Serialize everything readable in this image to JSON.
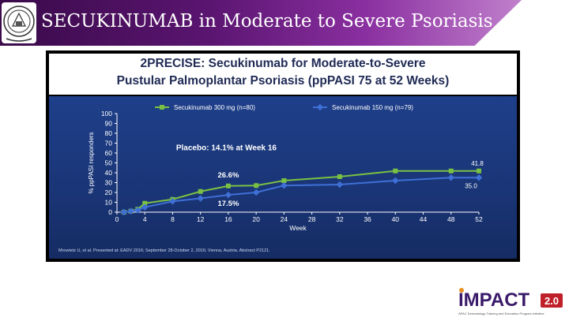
{
  "header": {
    "title": "SECUKINUMAB in Moderate to Severe Psoriasis"
  },
  "chart_title": {
    "line1": "2PRECISE: Secukinumab for Moderate-to-Severe",
    "line2": "Pustular Palmoplantar Psoriasis (ppPASI 75 at 52 Weeks)"
  },
  "footer_logo": {
    "text": "IMPACT",
    "version": "2.0",
    "tagline": "APAC Dermatology Training and Education Program Initiative"
  },
  "colors": {
    "series_300": "#7ac143",
    "series_150": "#3f6fd6",
    "chart_bg": "#1a3576",
    "header_accent": "#5a1570",
    "badge_red": "#c0202a"
  },
  "chart_data": {
    "type": "line",
    "title": "2PRECISE: Secukinumab for Moderate-to-Severe Pustular Palmoplantar Psoriasis (ppPASI 75 at 52 Weeks)",
    "xlabel": "Week",
    "ylabel": "% ppPASI responders",
    "xlim": [
      0,
      52
    ],
    "ylim": [
      0,
      100
    ],
    "xticks": [
      0,
      4,
      8,
      12,
      16,
      20,
      24,
      28,
      32,
      36,
      40,
      44,
      48,
      52
    ],
    "yticks": [
      0,
      10,
      20,
      30,
      40,
      50,
      60,
      70,
      80,
      90,
      100
    ],
    "grid": false,
    "legend_position": "top",
    "series": [
      {
        "name": "Secukinumab 300 mg (n=80)",
        "color": "#7ac143",
        "x": [
          1,
          2,
          3,
          4,
          8,
          12,
          16,
          20,
          24,
          32,
          40,
          48,
          52
        ],
        "y": [
          0,
          1,
          3,
          9,
          13,
          21,
          26.6,
          27,
          32,
          36,
          41.8,
          41.8,
          41.8
        ]
      },
      {
        "name": "Secukinumab 150 mg (n=79)",
        "color": "#3f6fd6",
        "x": [
          1,
          2,
          3,
          4,
          8,
          12,
          16,
          20,
          24,
          32,
          40,
          48,
          52
        ],
        "y": [
          0,
          1,
          2,
          5,
          11,
          14,
          17.5,
          20,
          27,
          28,
          32,
          35,
          35.0
        ]
      }
    ],
    "annotations": [
      {
        "text": "Placebo: 14.1% at Week 16"
      },
      {
        "text": "26.6%",
        "x": 16,
        "y": 26.6
      },
      {
        "text": "17.5%",
        "x": 16,
        "y": 17.5
      },
      {
        "text": "41.8",
        "x": 52,
        "y": 41.8
      },
      {
        "text": "35.0",
        "x": 52,
        "y": 35.0
      }
    ],
    "source": "Mrowietz U, et al. Presented at: EADV 2016; September 28-October 2, 2016; Vienna, Austria. Abstract P2121."
  }
}
